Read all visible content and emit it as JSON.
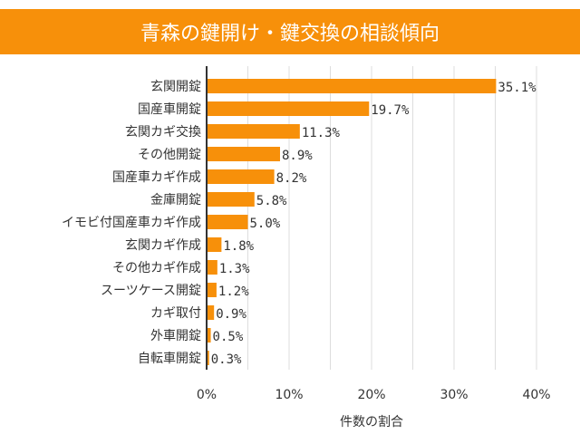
{
  "chart_data": {
    "type": "bar",
    "orientation": "horizontal",
    "title": "青森の鍵開け・鍵交換の相談傾向",
    "xlabel": "件数の割合",
    "ylabel": "",
    "xlim": [
      0,
      40
    ],
    "xticks": [
      "0%",
      "10%",
      "20%",
      "30%",
      "40%"
    ],
    "grid": true,
    "bar_color": "#f7900a",
    "categories": [
      "玄関開錠",
      "国産車開錠",
      "玄関カギ交換",
      "その他開錠",
      "国産車カギ作成",
      "金庫開錠",
      "イモビ付国産車カギ作成",
      "玄関カギ作成",
      "その他カギ作成",
      "スーツケース開錠",
      "カギ取付",
      "外車開錠",
      "自転車開錠"
    ],
    "values": [
      35.1,
      19.7,
      11.3,
      8.9,
      8.2,
      5.8,
      5.0,
      1.8,
      1.3,
      1.2,
      0.9,
      0.5,
      0.3
    ],
    "labels": [
      "35.1%",
      "19.7%",
      "11.3%",
      "8.9%",
      "8.2%",
      "5.8%",
      "5.0%",
      "1.8%",
      "1.3%",
      "1.2%",
      "0.9%",
      "0.5%",
      "0.3%"
    ]
  }
}
